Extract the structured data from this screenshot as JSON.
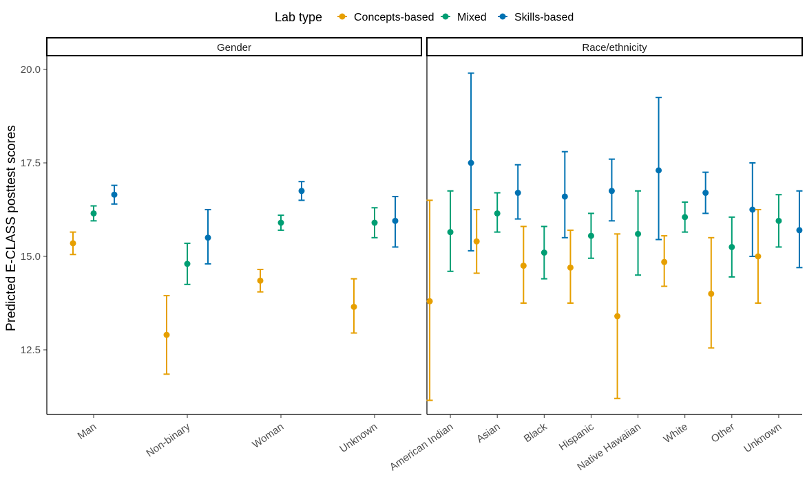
{
  "chart_data": {
    "type": "errorbar",
    "ylabel": "Predicted E-CLASS posttest scores",
    "xlabel": "",
    "ylim": [
      10.8,
      20.3
    ],
    "yticks": [
      12.5,
      15.0,
      17.5,
      20.0
    ],
    "ytick_labels": [
      "12.5",
      "15.0",
      "17.5",
      "20.0"
    ],
    "legend": {
      "title": "Lab type",
      "position": "top",
      "entries": [
        "Concepts-based",
        "Mixed",
        "Skills-based"
      ]
    },
    "colors": {
      "Concepts-based": "#E69F00",
      "Mixed": "#009E73",
      "Skills-based": "#0072B2"
    },
    "grid": false,
    "panels": [
      {
        "strip": "Gender",
        "categories": [
          "Man",
          "Non-binary",
          "Woman",
          "Unknown"
        ],
        "series": [
          {
            "name": "Concepts-based",
            "y": [
              15.35,
              12.9,
              14.35,
              13.65
            ],
            "ymin": [
              15.05,
              11.85,
              14.05,
              12.95
            ],
            "ymax": [
              15.65,
              13.95,
              14.65,
              14.4
            ]
          },
          {
            "name": "Mixed",
            "y": [
              16.15,
              14.8,
              15.9,
              15.9
            ],
            "ymin": [
              15.95,
              14.25,
              15.7,
              15.5
            ],
            "ymax": [
              16.35,
              15.35,
              16.1,
              16.3
            ]
          },
          {
            "name": "Skills-based",
            "y": [
              16.65,
              15.5,
              16.75,
              15.95
            ],
            "ymin": [
              16.4,
              14.8,
              16.5,
              15.25
            ],
            "ymax": [
              16.9,
              16.25,
              17.0,
              16.6
            ]
          }
        ]
      },
      {
        "strip": "Race/ethnicity",
        "categories": [
          "American Indian",
          "Asian",
          "Black",
          "Hispanic",
          "Native Hawaiian",
          "White",
          "Other",
          "Unknown"
        ],
        "series": [
          {
            "name": "Concepts-based",
            "y": [
              13.8,
              15.4,
              14.75,
              14.7,
              13.4,
              14.85,
              14.0,
              15.0
            ],
            "ymin": [
              11.15,
              14.55,
              13.75,
              13.75,
              11.2,
              14.2,
              12.55,
              13.75
            ],
            "ymax": [
              16.5,
              16.25,
              15.8,
              15.7,
              15.6,
              15.55,
              15.5,
              16.25
            ]
          },
          {
            "name": "Mixed",
            "y": [
              15.65,
              16.15,
              15.1,
              15.55,
              15.6,
              16.05,
              15.25,
              15.95
            ],
            "ymin": [
              14.6,
              15.65,
              14.4,
              14.95,
              14.5,
              15.65,
              14.45,
              15.25
            ],
            "ymax": [
              16.75,
              16.7,
              15.8,
              16.15,
              16.75,
              16.45,
              16.05,
              16.65
            ]
          },
          {
            "name": "Skills-based",
            "y": [
              17.5,
              16.7,
              16.6,
              16.75,
              17.3,
              16.7,
              16.25,
              15.7
            ],
            "ymin": [
              15.15,
              16.0,
              15.5,
              15.95,
              15.45,
              16.15,
              15.0,
              14.7
            ],
            "ymax": [
              19.9,
              17.45,
              17.8,
              17.6,
              19.25,
              17.25,
              17.5,
              16.75
            ]
          }
        ]
      }
    ]
  }
}
